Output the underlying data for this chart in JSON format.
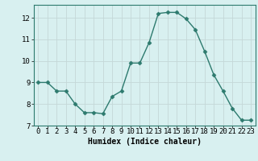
{
  "x": [
    0,
    1,
    2,
    3,
    4,
    5,
    6,
    7,
    8,
    9,
    10,
    11,
    12,
    13,
    14,
    15,
    16,
    17,
    18,
    19,
    20,
    21,
    22,
    23
  ],
  "y": [
    9.0,
    9.0,
    8.6,
    8.6,
    8.0,
    7.6,
    7.6,
    7.55,
    8.35,
    8.6,
    9.9,
    9.9,
    10.85,
    12.2,
    12.25,
    12.25,
    11.95,
    11.45,
    10.45,
    9.35,
    8.6,
    7.8,
    7.25,
    7.25
  ],
  "line_color": "#2d7a6e",
  "marker": "D",
  "marker_size": 2.5,
  "bg_color": "#d8f0f0",
  "grid_color": "#c4d8d8",
  "xlabel": "Humidex (Indice chaleur)",
  "xlim": [
    -0.5,
    23.5
  ],
  "ylim": [
    7.0,
    12.6
  ],
  "xticks": [
    0,
    1,
    2,
    3,
    4,
    5,
    6,
    7,
    8,
    9,
    10,
    11,
    12,
    13,
    14,
    15,
    16,
    17,
    18,
    19,
    20,
    21,
    22,
    23
  ],
  "yticks": [
    7,
    8,
    9,
    10,
    11,
    12
  ],
  "xlabel_fontsize": 7,
  "tick_fontsize": 6.5,
  "line_width": 1.0
}
